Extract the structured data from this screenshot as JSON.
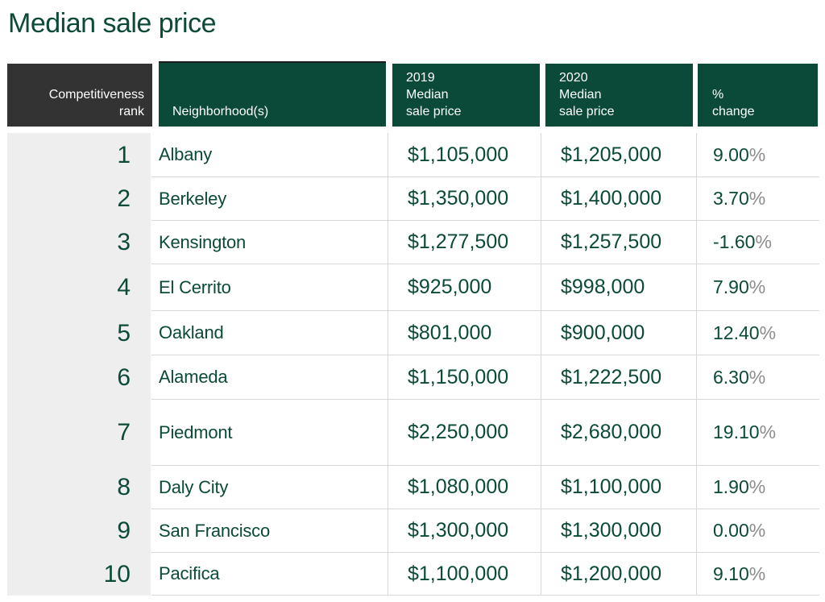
{
  "title": "Median sale price",
  "headers": {
    "rank": [
      "Competitiveness",
      "rank"
    ],
    "neighborhood": "Neighborhood(s)",
    "y2019": [
      "2019",
      "Median",
      "sale price"
    ],
    "y2020": [
      "2020",
      "Median",
      "sale price"
    ],
    "pct": [
      "%",
      "change"
    ]
  },
  "rows": [
    {
      "rank": "1",
      "neighborhood": "Albany",
      "y2019": "$1,105,000",
      "y2020": "$1,205,000",
      "pct": "9.00",
      "pct_sign": "%"
    },
    {
      "rank": "2",
      "neighborhood": "Berkeley",
      "y2019": "$1,350,000",
      "y2020": "$1,400,000",
      "pct": "3.70",
      "pct_sign": "%"
    },
    {
      "rank": "3",
      "neighborhood": "Kensington",
      "y2019": "$1,277,500",
      "y2020": "$1,257,500",
      "pct": "-1.60",
      "pct_sign": "%"
    },
    {
      "rank": "4",
      "neighborhood": "El Cerrito",
      "y2019": "$925,000",
      "y2020": "$998,000",
      "pct": "7.90",
      "pct_sign": "%"
    },
    {
      "rank": "5",
      "neighborhood": "Oakland",
      "y2019": "$801,000",
      "y2020": "$900,000",
      "pct": "12.40",
      "pct_sign": "%"
    },
    {
      "rank": "6",
      "neighborhood": "Alameda",
      "y2019": "$1,150,000",
      "y2020": "$1,222,500",
      "pct": "6.30",
      "pct_sign": "%"
    },
    {
      "rank": "7",
      "neighborhood": "Piedmont",
      "y2019": "$2,250,000",
      "y2020": "$2,680,000",
      "pct": "19.10",
      "pct_sign": "%"
    },
    {
      "rank": "8",
      "neighborhood": "Daly City",
      "y2019": "$1,080,000",
      "y2020": "$1,100,000",
      "pct": "1.90",
      "pct_sign": "%"
    },
    {
      "rank": "9",
      "neighborhood": "San Francisco",
      "y2019": "$1,300,000",
      "y2020": "$1,300,000",
      "pct": "0.00",
      "pct_sign": "%"
    },
    {
      "rank": "10",
      "neighborhood": "Pacifica",
      "y2019": "$1,100,000",
      "y2020": "$1,200,000",
      "pct": "9.10",
      "pct_sign": "%"
    }
  ],
  "colors": {
    "brand_green": "#0b4a38",
    "rank_header": "#333333",
    "rank_column_bg": "#eeeeee",
    "percent_sign": "#8c8c8c"
  }
}
